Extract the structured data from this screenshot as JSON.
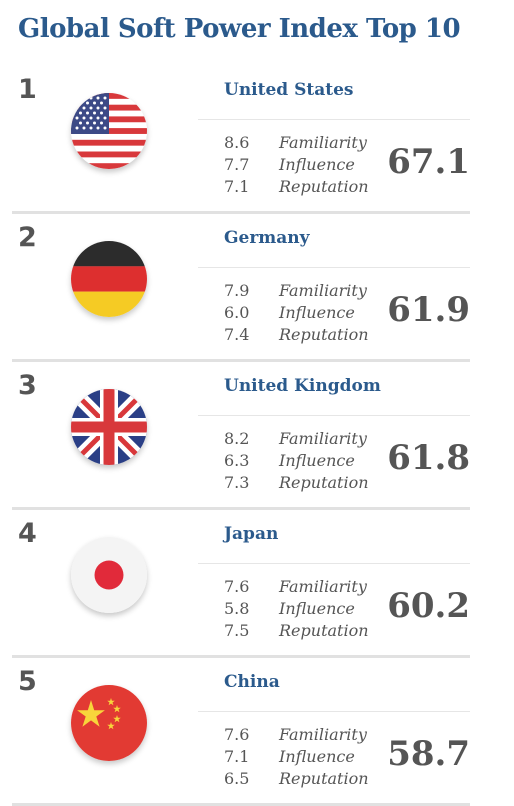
{
  "title": "Global Soft Power Index Top 10",
  "metric_labels": {
    "familiarity": "Familiarity",
    "influence": "Influence",
    "reputation": "Reputation"
  },
  "countries": [
    {
      "rank": "1",
      "name": "United States",
      "flag_icon": "us-flag-icon",
      "familiarity": "8.6",
      "influence": "7.7",
      "reputation": "7.1",
      "score": "67.1"
    },
    {
      "rank": "2",
      "name": "Germany",
      "flag_icon": "germany-flag-icon",
      "familiarity": "7.9",
      "influence": "6.0",
      "reputation": "7.4",
      "score": "61.9"
    },
    {
      "rank": "3",
      "name": "United Kingdom",
      "flag_icon": "uk-flag-icon",
      "familiarity": "8.2",
      "influence": "6.3",
      "reputation": "7.3",
      "score": "61.8"
    },
    {
      "rank": "4",
      "name": "Japan",
      "flag_icon": "japan-flag-icon",
      "familiarity": "7.6",
      "influence": "5.8",
      "reputation": "7.5",
      "score": "60.2"
    },
    {
      "rank": "5",
      "name": "China",
      "flag_icon": "china-flag-icon",
      "familiarity": "7.6",
      "influence": "7.1",
      "reputation": "6.5",
      "score": "58.7"
    }
  ],
  "colors": {
    "title": "#2b5a8c",
    "country_name": "#2b5a8c",
    "text": "#555555",
    "divider": "#e1e1e1"
  }
}
